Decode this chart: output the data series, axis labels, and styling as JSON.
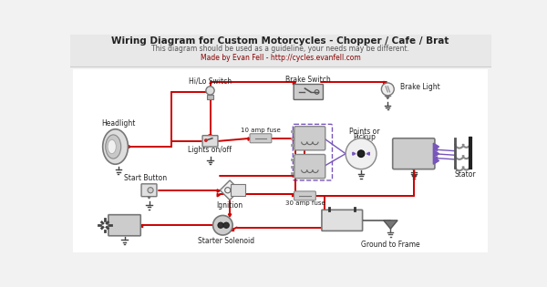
{
  "title": "Wiring Diagram for Custom Motorcycles - Chopper / Cafe / Brat",
  "subtitle": "This diagram should be used as a guideline, your needs may be different.",
  "credit": "Made by Evan Fell - http://cycles.evanfell.com",
  "bg_color": "#f2f2f2",
  "header_bg": "#e8e8e8",
  "diagram_bg": "#ffffff",
  "wire_red": "#cc0000",
  "wire_gray": "#666666",
  "wire_purple": "#7755bb",
  "component_fill": "#cccccc",
  "component_edge": "#666666",
  "coil_fill": "#aaaacc",
  "coil_edge": "#666688",
  "title_color": "#222222",
  "subtitle_color": "#555555",
  "link_color": "#8b0000",
  "label_color": "#222222"
}
